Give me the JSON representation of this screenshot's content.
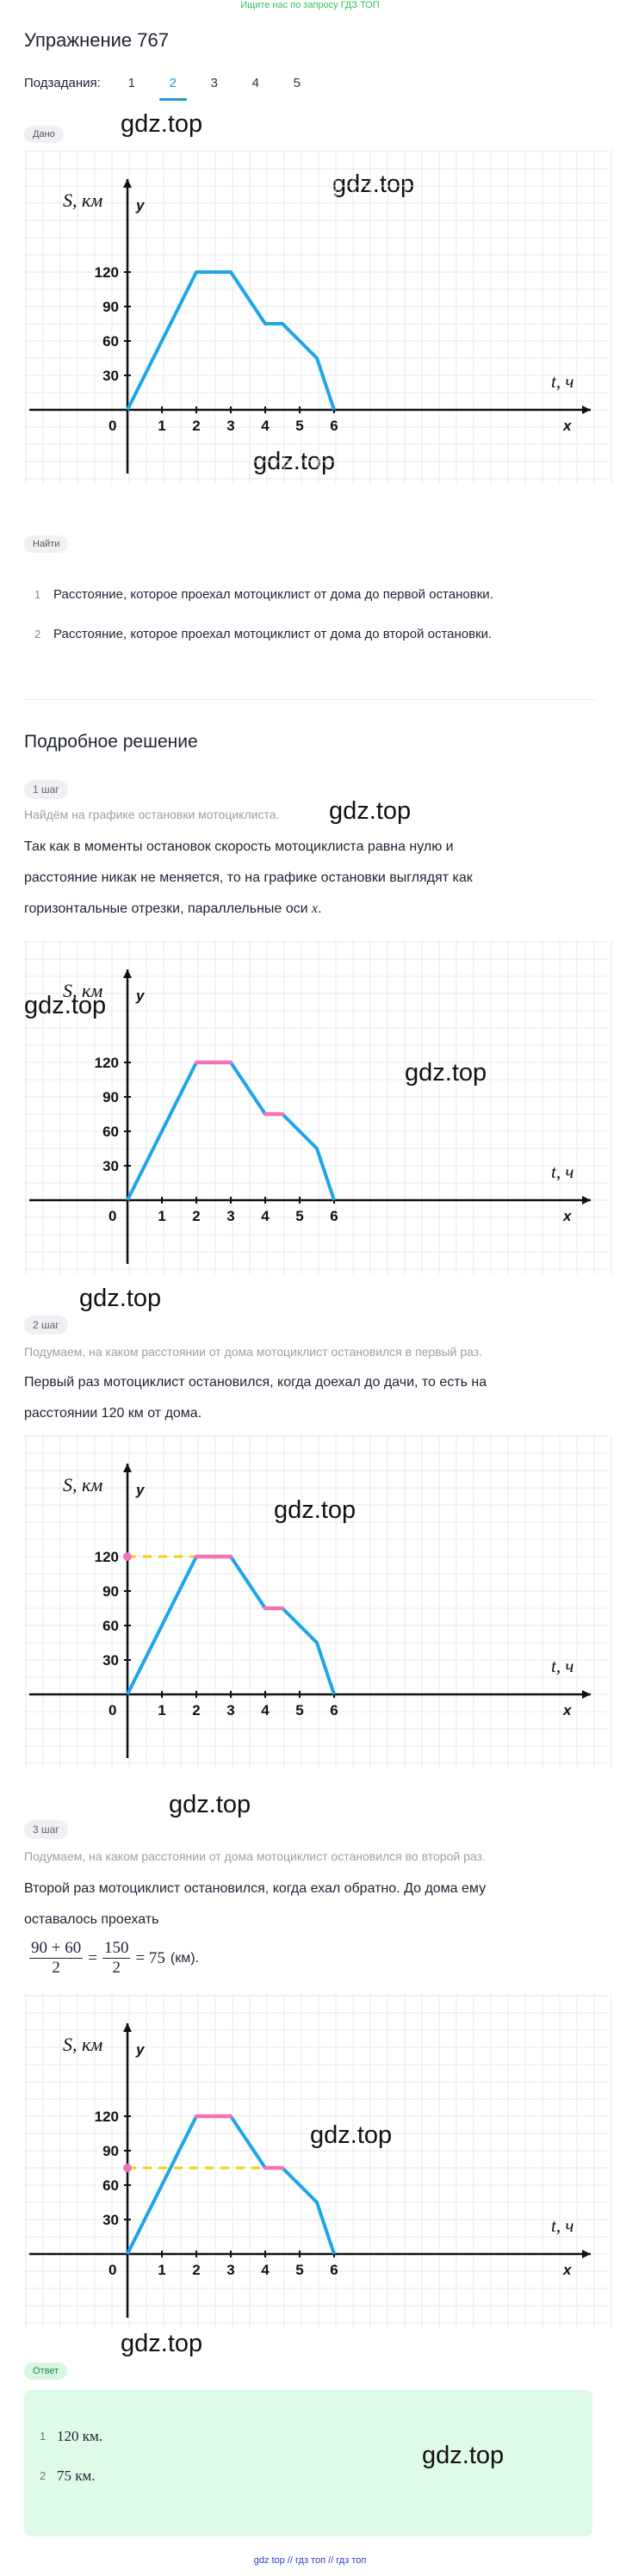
{
  "top_hint": "Ищите нас по запросу ГДЗ ТОП",
  "title": "Упражнение 767",
  "subtasks": {
    "label": "Подзадания:",
    "tabs": [
      "1",
      "2",
      "3",
      "4",
      "5"
    ],
    "active": "2"
  },
  "given_chip": "Дано",
  "find_chip": "Найти",
  "watermark": "gdz.top",
  "find_items": [
    "Расстояние, которое проехал мотоциклист от дома до первой остановки.",
    "Расстояние, которое проехал мотоциклист от дома до второй остановки."
  ],
  "solution_title": "Подробное решение",
  "steps": [
    {
      "label": "1 шаг",
      "hint": "Найдём на графике остановки мотоциклиста.",
      "lines": [
        "Так как в моменты остановок скорость мотоциклиста равна нулю и",
        "расстояние никак не меняется, то на графике остановки выглядят как",
        "горизонтальные отрезки, параллельные оси"
      ],
      "axis_var": "x"
    },
    {
      "label": "2 шаг",
      "hint": "Подумаем, на каком расстоянии от дома мотоциклист остановился в первый раз.",
      "lines": [
        "Первый раз мотоциклист остановился, когда доехал до дачи, то есть на",
        "расстоянии 120 км от дома."
      ]
    },
    {
      "label": "3 шаг",
      "hint": "Подумаем, на каком расстоянии от дома мотоциклист остановился во второй раз.",
      "lines": [
        "Второй раз мотоциклист остановился, когда ехал обратно. До дома ему",
        "оставалось проехать"
      ],
      "formula": {
        "num1": "90 + 60",
        "den1": "2",
        "num2": "150",
        "den2": "2",
        "result": "= 75",
        "unit": "(км)."
      }
    }
  ],
  "answer_chip": "Ответ",
  "answers": [
    "120 км.",
    "75 км."
  ],
  "footer": "gdz top  //  гдз топ  //  гдз топ",
  "chart_data": [
    {
      "type": "line",
      "xlabel": "t, ч",
      "ylabel": "S, км",
      "x_axis_name": "x",
      "y_axis_name": "y",
      "x_ticks": [
        1,
        2,
        3,
        4,
        5,
        6
      ],
      "y_ticks": [
        30,
        60,
        90,
        120
      ],
      "origin_label": "0",
      "x": [
        0,
        2,
        3,
        4,
        4.5,
        5.5,
        6
      ],
      "y": [
        0,
        120,
        120,
        75,
        75,
        45,
        0
      ],
      "grid": true,
      "line_color": "#1ea5ea",
      "highlight_segments": [],
      "guide": null
    },
    {
      "type": "line",
      "xlabel": "t, ч",
      "ylabel": "S, км",
      "x_axis_name": "x",
      "y_axis_name": "y",
      "x_ticks": [
        1,
        2,
        3,
        4,
        5,
        6
      ],
      "y_ticks": [
        30,
        60,
        90,
        120
      ],
      "origin_label": "0",
      "x": [
        0,
        2,
        3,
        4,
        4.5,
        5.5,
        6
      ],
      "y": [
        0,
        120,
        120,
        75,
        75,
        45,
        0
      ],
      "grid": true,
      "line_color": "#1ea5ea",
      "highlight_color": "#f472b6",
      "highlight_segments": [
        [
          2,
          3,
          120
        ],
        [
          4,
          4.5,
          75
        ]
      ],
      "guide": null
    },
    {
      "type": "line",
      "xlabel": "t, ч",
      "ylabel": "S, км",
      "x_axis_name": "x",
      "y_axis_name": "y",
      "x_ticks": [
        1,
        2,
        3,
        4,
        5,
        6
      ],
      "y_ticks": [
        30,
        60,
        90,
        120
      ],
      "origin_label": "0",
      "x": [
        0,
        2,
        3,
        4,
        4.5,
        5.5,
        6
      ],
      "y": [
        0,
        120,
        120,
        75,
        75,
        45,
        0
      ],
      "grid": true,
      "line_color": "#1ea5ea",
      "highlight_color": "#f472b6",
      "highlight_segments": [
        [
          2,
          3,
          120
        ],
        [
          4,
          4.5,
          75
        ]
      ],
      "guide": {
        "y": 120,
        "x_to": 2,
        "color": "#facc15"
      }
    },
    {
      "type": "line",
      "xlabel": "t, ч",
      "ylabel": "S, км",
      "x_axis_name": "x",
      "y_axis_name": "y",
      "x_ticks": [
        1,
        2,
        3,
        4,
        5,
        6
      ],
      "y_ticks": [
        30,
        60,
        90,
        120
      ],
      "origin_label": "0",
      "x": [
        0,
        2,
        3,
        4,
        4.5,
        5.5,
        6
      ],
      "y": [
        0,
        120,
        120,
        75,
        75,
        45,
        0
      ],
      "grid": true,
      "line_color": "#1ea5ea",
      "highlight_color": "#f472b6",
      "highlight_segments": [
        [
          2,
          3,
          120
        ],
        [
          4,
          4.5,
          75
        ]
      ],
      "guide": {
        "y": 75,
        "x_to": 4,
        "color": "#facc15"
      }
    }
  ]
}
